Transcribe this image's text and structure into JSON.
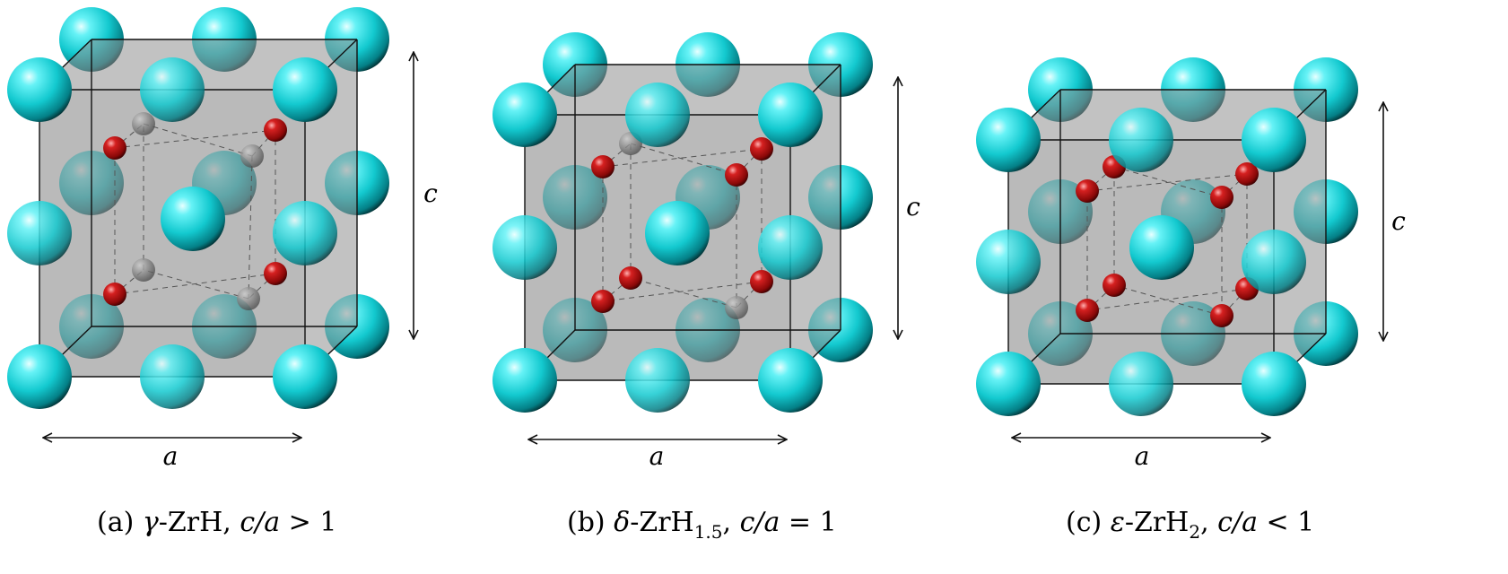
{
  "panels": [
    {
      "id": "a",
      "caption": {
        "prefix": "(a) ",
        "greek": "γ",
        "formula": "-ZrH",
        "subscript": "",
        "ratio_prefix": ", ",
        "ratio": "c/a",
        "relation": " > 1"
      },
      "dimension_labels": {
        "width": "a",
        "height": "c"
      },
      "hydrogen_sites": "four red H atoms on alternating corners of the inner cube, four grey sites vacant"
    },
    {
      "id": "b",
      "caption": {
        "prefix": "(b) ",
        "greek": "δ",
        "formula": "-ZrH",
        "subscript": "1.5",
        "ratio_prefix": ", ",
        "ratio": "c/a",
        "relation": " = 1"
      },
      "dimension_labels": {
        "width": "a",
        "height": "c"
      },
      "hydrogen_sites": "six red H atoms, two grey sites vacant"
    },
    {
      "id": "c",
      "caption": {
        "prefix": "(c) ",
        "greek": "ε",
        "formula": "-ZrH",
        "subscript": "2",
        "ratio_prefix": ", ",
        "ratio": "c/a",
        "relation": " < 1"
      },
      "dimension_labels": {
        "width": "a",
        "height": "c"
      },
      "hydrogen_sites": "all eight H sites occupied (red)"
    }
  ],
  "colors": {
    "zirconium": "#1fd6dc",
    "hydrogen": "#c01818",
    "vacant_site": "#8a8a8a",
    "cell_face": "#8f8f8f",
    "edge": "#111111"
  }
}
